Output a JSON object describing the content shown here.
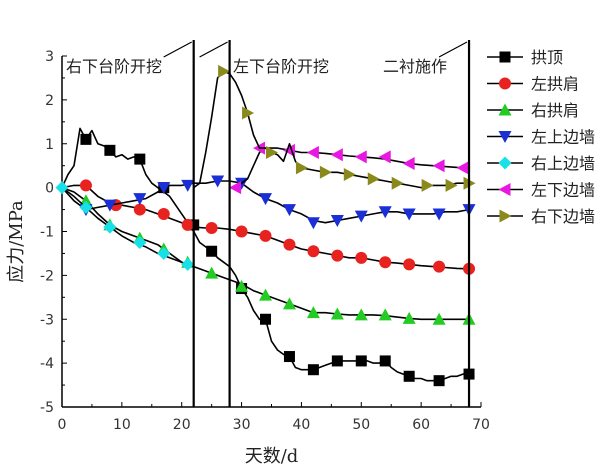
{
  "chart_data": {
    "type": "line",
    "title": "",
    "xlabel": "天数/d",
    "ylabel": "应力/MPa",
    "xlim": [
      0,
      70
    ],
    "ylim": [
      -5,
      3
    ],
    "xticks": [
      0,
      10,
      20,
      30,
      40,
      50,
      60,
      70
    ],
    "yticks": [
      -5,
      -4,
      -3,
      -2,
      -1,
      0,
      1,
      2,
      3
    ],
    "annotations": [
      {
        "text": "右下台阶开挖",
        "x_line": 22
      },
      {
        "text": "左下台阶开挖",
        "x_line": 28
      },
      {
        "text": "二衬施作",
        "x_line": 68
      }
    ],
    "legend_position": "right",
    "series": [
      {
        "name": "拱顶",
        "marker": "square",
        "color": "#000000",
        "x": [
          0,
          1,
          2,
          3,
          4,
          5,
          6,
          7,
          8,
          9,
          10,
          11,
          12,
          13,
          14,
          15,
          16,
          17,
          18,
          19,
          20,
          21,
          22,
          23,
          24,
          25,
          26,
          27,
          28,
          29,
          30,
          31,
          32,
          33,
          34,
          35,
          36,
          37,
          38,
          39,
          40,
          41,
          42,
          43,
          44,
          45,
          46,
          47,
          48,
          49,
          50,
          51,
          52,
          53,
          54,
          55,
          56,
          57,
          58,
          59,
          60,
          61,
          62,
          63,
          64,
          65,
          66,
          67,
          68
        ],
        "y": [
          0,
          0.3,
          0.5,
          1.35,
          1.1,
          1.3,
          1.0,
          0.95,
          0.85,
          0.7,
          0.75,
          0.65,
          0.7,
          0.65,
          0.3,
          0.1,
          0.0,
          -0.1,
          -0.2,
          -0.4,
          -0.6,
          -0.8,
          -1.0,
          -1.25,
          -1.35,
          -1.45,
          -1.6,
          -1.7,
          -1.8,
          -2.0,
          -2.3,
          -2.5,
          -2.8,
          -3.0,
          -3.0,
          -3.5,
          -3.7,
          -3.8,
          -3.85,
          -4.1,
          -4.15,
          -4.15,
          -4.15,
          -4.1,
          -4.05,
          -4.0,
          -3.95,
          -3.95,
          -3.95,
          -3.95,
          -3.95,
          -3.95,
          -4.0,
          -4.0,
          -3.95,
          -4.1,
          -4.2,
          -4.25,
          -4.3,
          -4.35,
          -4.35,
          -4.4,
          -4.4,
          -4.4,
          -4.35,
          -4.3,
          -4.3,
          -4.25,
          -4.25
        ],
        "marker_x": [
          4,
          8,
          13,
          17,
          22,
          25,
          30,
          34,
          38,
          42,
          46,
          50,
          54,
          58,
          63,
          68
        ],
        "marker_y": [
          1.1,
          0.85,
          0.65,
          0.0,
          -0.85,
          -1.45,
          -2.3,
          -3.0,
          -3.85,
          -4.15,
          -3.95,
          -3.95,
          -3.95,
          -4.3,
          -4.4,
          -4.25
        ]
      },
      {
        "name": "左拱肩",
        "marker": "circle",
        "color": "#e8231f",
        "x": [
          0,
          2,
          4,
          6,
          8,
          10,
          12,
          14,
          16,
          18,
          20,
          22,
          24,
          26,
          28,
          30,
          32,
          34,
          36,
          38,
          40,
          42,
          44,
          46,
          48,
          50,
          52,
          54,
          56,
          58,
          60,
          62,
          64,
          66,
          68
        ],
        "y": [
          0,
          0.05,
          0.05,
          -0.2,
          -0.35,
          -0.4,
          -0.45,
          -0.5,
          -0.6,
          -0.7,
          -0.8,
          -0.9,
          -0.92,
          -0.92,
          -0.95,
          -1.0,
          -1.05,
          -1.1,
          -1.2,
          -1.3,
          -1.4,
          -1.45,
          -1.5,
          -1.55,
          -1.6,
          -1.6,
          -1.65,
          -1.7,
          -1.72,
          -1.75,
          -1.78,
          -1.8,
          -1.82,
          -1.84,
          -1.85
        ],
        "marker_x": [
          4,
          9,
          13,
          17,
          21,
          25,
          30,
          34,
          38,
          42,
          46,
          50,
          54,
          58,
          63,
          68
        ],
        "marker_y": [
          0.05,
          -0.4,
          -0.5,
          -0.6,
          -0.85,
          -0.92,
          -1.0,
          -1.1,
          -1.3,
          -1.45,
          -1.55,
          -1.6,
          -1.7,
          -1.75,
          -1.8,
          -1.85
        ]
      },
      {
        "name": "右拱肩",
        "marker": "triangle-up",
        "color": "#22cc22",
        "x": [
          0,
          2,
          4,
          6,
          8,
          10,
          12,
          14,
          16,
          18,
          20,
          22,
          24,
          26,
          28,
          30,
          32,
          34,
          36,
          38,
          40,
          42,
          44,
          46,
          48,
          50,
          52,
          54,
          56,
          58,
          60,
          62,
          64,
          66,
          68
        ],
        "y": [
          0,
          -0.1,
          -0.3,
          -0.6,
          -0.85,
          -1.0,
          -1.1,
          -1.2,
          -1.3,
          -1.5,
          -1.7,
          -1.8,
          -1.9,
          -2.0,
          -2.1,
          -2.2,
          -2.35,
          -2.45,
          -2.55,
          -2.65,
          -2.75,
          -2.85,
          -2.85,
          -2.88,
          -2.9,
          -2.9,
          -2.9,
          -2.92,
          -2.95,
          -2.98,
          -3.0,
          -3.0,
          -3.0,
          -3.0,
          -3.0
        ],
        "marker_x": [
          4,
          8,
          13,
          17,
          21,
          25,
          30,
          34,
          38,
          42,
          46,
          50,
          54,
          58,
          63,
          68
        ],
        "marker_y": [
          -0.3,
          -0.85,
          -1.15,
          -1.4,
          -1.7,
          -1.95,
          -2.25,
          -2.45,
          -2.65,
          -2.85,
          -2.88,
          -2.9,
          -2.9,
          -2.98,
          -3.0,
          -3.0
        ]
      },
      {
        "name": "左上边墙",
        "marker": "triangle-down",
        "color": "#1a2fd6",
        "x": [
          0,
          2,
          4,
          6,
          8,
          10,
          12,
          14,
          16,
          18,
          20,
          22,
          24,
          26,
          28,
          30,
          32,
          34,
          36,
          38,
          40,
          42,
          44,
          46,
          48,
          50,
          52,
          54,
          56,
          58,
          60,
          62,
          64,
          66,
          68
        ],
        "y": [
          0,
          -0.3,
          -0.5,
          -0.45,
          -0.4,
          -0.35,
          -0.3,
          -0.25,
          -0.1,
          0.05,
          0.05,
          0.1,
          0.1,
          0.15,
          0.15,
          0.1,
          -0.1,
          -0.25,
          -0.35,
          -0.5,
          -0.6,
          -0.75,
          -0.8,
          -0.75,
          -0.7,
          -0.65,
          -0.6,
          -0.55,
          -0.55,
          -0.6,
          -0.6,
          -0.6,
          -0.55,
          -0.55,
          -0.5
        ],
        "marker_x": [
          4,
          8,
          13,
          17,
          21,
          26,
          30,
          34,
          38,
          42,
          46,
          50,
          54,
          58,
          63,
          68
        ],
        "marker_y": [
          -0.5,
          -0.4,
          -0.25,
          0.0,
          0.05,
          0.15,
          0.1,
          -0.25,
          -0.5,
          -0.8,
          -0.75,
          -0.65,
          -0.55,
          -0.6,
          -0.6,
          -0.5
        ]
      },
      {
        "name": "右上边墙",
        "marker": "diamond",
        "color": "#18e0e8",
        "x": [
          0,
          2,
          4,
          6,
          8,
          10,
          12,
          14,
          16,
          18,
          20,
          21,
          22
        ],
        "y": [
          0,
          -0.2,
          -0.45,
          -0.7,
          -0.9,
          -1.1,
          -1.25,
          -1.35,
          -1.5,
          -1.6,
          -1.7,
          -1.75,
          -1.8
        ],
        "marker_x": [
          0,
          4,
          8,
          13,
          17,
          21
        ],
        "marker_y": [
          0,
          -0.45,
          -0.9,
          -1.25,
          -1.5,
          -1.75
        ]
      },
      {
        "name": "左下边墙",
        "marker": "triangle-left",
        "color": "#e818e0",
        "x": [
          29,
          30,
          31,
          32,
          33,
          34,
          36,
          38,
          40,
          42,
          44,
          46,
          48,
          50,
          52,
          54,
          56,
          58,
          60,
          62,
          64,
          66,
          68
        ],
        "y": [
          0.0,
          0.1,
          0.2,
          0.5,
          0.8,
          0.9,
          0.9,
          0.85,
          0.8,
          0.8,
          0.78,
          0.75,
          0.72,
          0.7,
          0.68,
          0.65,
          0.6,
          0.55,
          0.52,
          0.5,
          0.48,
          0.46,
          0.45
        ],
        "marker_x": [
          29,
          33,
          38,
          42,
          46,
          50,
          54,
          58,
          63,
          67
        ],
        "marker_y": [
          0.0,
          0.9,
          0.85,
          0.8,
          0.75,
          0.7,
          0.7,
          0.55,
          0.5,
          0.45
        ]
      },
      {
        "name": "右下边墙",
        "marker": "triangle-right",
        "color": "#8a8a1c",
        "x": [
          22,
          23,
          24,
          25,
          26,
          27,
          28,
          29,
          30,
          31,
          32,
          33,
          34,
          35,
          36,
          37,
          38,
          39,
          40,
          42,
          44,
          46,
          48,
          50,
          52,
          54,
          56,
          58,
          60,
          62,
          64,
          66,
          68
        ],
        "y": [
          0.0,
          0.1,
          0.8,
          1.6,
          2.5,
          2.65,
          2.6,
          2.4,
          2.1,
          1.7,
          1.2,
          0.9,
          0.9,
          0.8,
          0.75,
          0.6,
          1.0,
          0.6,
          0.45,
          0.4,
          0.35,
          0.35,
          0.3,
          0.25,
          0.2,
          0.15,
          0.1,
          0.05,
          0.0,
          0.05,
          0.05,
          0.1,
          0.1
        ],
        "marker_x": [
          27,
          31,
          35,
          40,
          44,
          48,
          52,
          56,
          61,
          65,
          68
        ],
        "marker_y": [
          2.65,
          1.7,
          0.8,
          0.45,
          0.35,
          0.3,
          0.2,
          0.1,
          0.05,
          0.05,
          0.1
        ]
      }
    ]
  }
}
